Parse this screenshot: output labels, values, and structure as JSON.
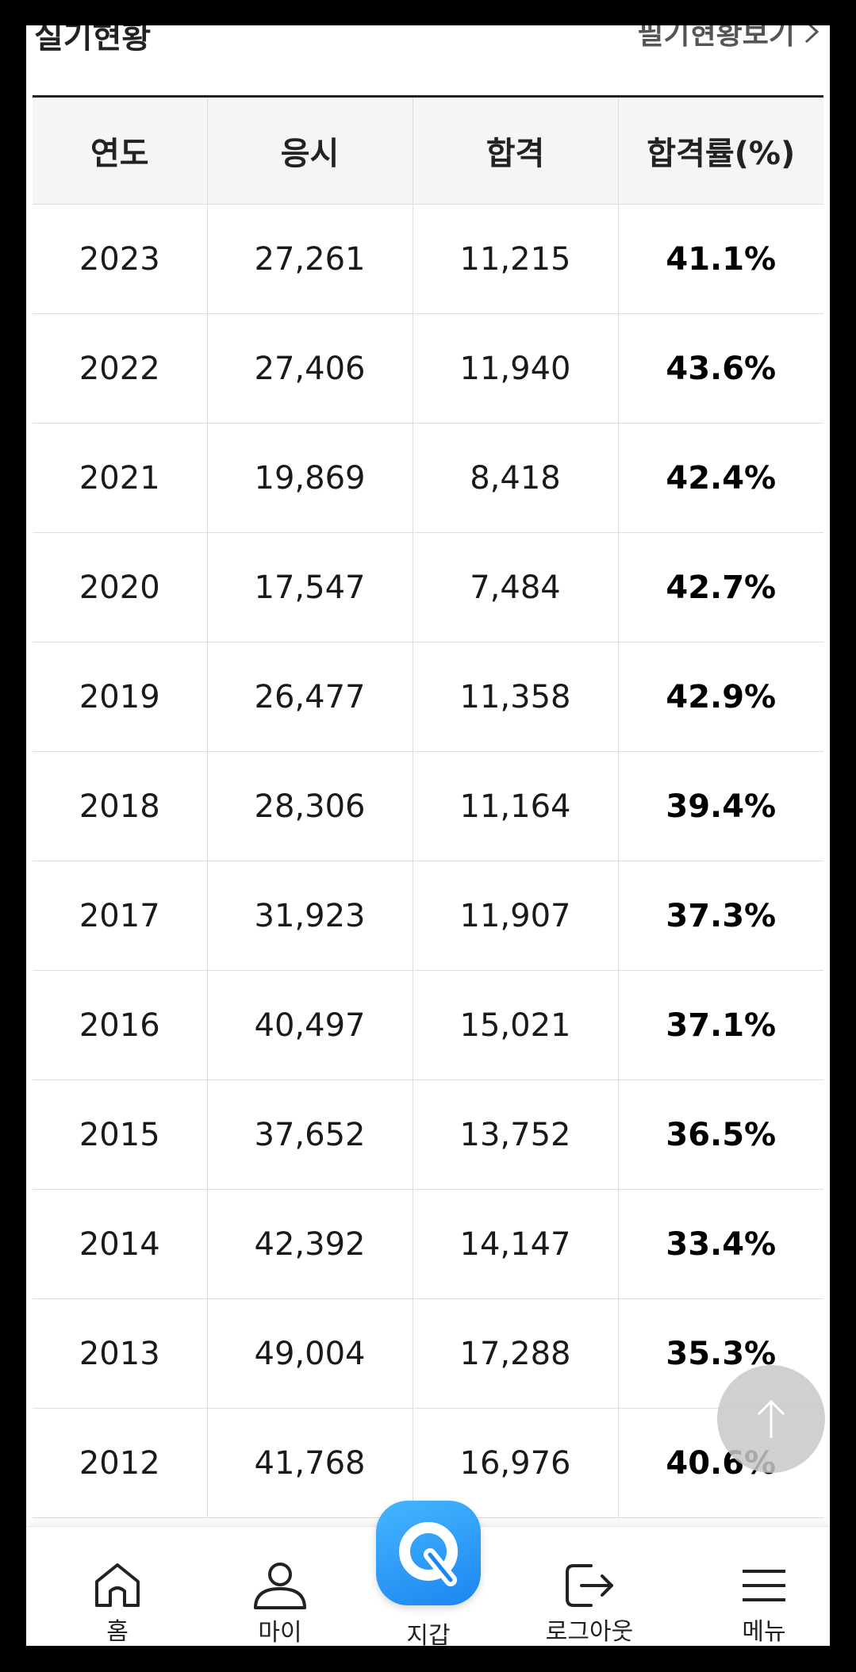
{
  "section": {
    "title": "실기현황",
    "link_label": "필기현황보기"
  },
  "table": {
    "headers": [
      "연도",
      "응시",
      "합격",
      "합격률(%)"
    ],
    "rows": [
      {
        "year": "2023",
        "applicants": "27,261",
        "passed": "11,215",
        "rate": "41.1%"
      },
      {
        "year": "2022",
        "applicants": "27,406",
        "passed": "11,940",
        "rate": "43.6%"
      },
      {
        "year": "2021",
        "applicants": "19,869",
        "passed": "8,418",
        "rate": "42.4%"
      },
      {
        "year": "2020",
        "applicants": "17,547",
        "passed": "7,484",
        "rate": "42.7%"
      },
      {
        "year": "2019",
        "applicants": "26,477",
        "passed": "11,358",
        "rate": "42.9%"
      },
      {
        "year": "2018",
        "applicants": "28,306",
        "passed": "11,164",
        "rate": "39.4%"
      },
      {
        "year": "2017",
        "applicants": "31,923",
        "passed": "11,907",
        "rate": "37.3%"
      },
      {
        "year": "2016",
        "applicants": "40,497",
        "passed": "15,021",
        "rate": "37.1%"
      },
      {
        "year": "2015",
        "applicants": "37,652",
        "passed": "13,752",
        "rate": "36.5%"
      },
      {
        "year": "2014",
        "applicants": "42,392",
        "passed": "14,147",
        "rate": "33.4%"
      },
      {
        "year": "2013",
        "applicants": "49,004",
        "passed": "17,288",
        "rate": "35.3%"
      },
      {
        "year": "2012",
        "applicants": "41,768",
        "passed": "16,976",
        "rate": "40.6%"
      }
    ]
  },
  "bottom_nav": {
    "home": {
      "label": "홈",
      "icon": "home-icon"
    },
    "my": {
      "label": "마이",
      "icon": "user-icon"
    },
    "wallet": {
      "label": "지갑",
      "icon": "q-logo-icon"
    },
    "logout": {
      "label": "로그아웃",
      "icon": "logout-icon"
    },
    "menu": {
      "label": "메뉴",
      "icon": "hamburger-icon"
    }
  },
  "colors": {
    "wallet_gradient_top": "#45b6ff",
    "wallet_gradient_bottom": "#1b86f0",
    "header_bg": "#f5f5f5"
  }
}
